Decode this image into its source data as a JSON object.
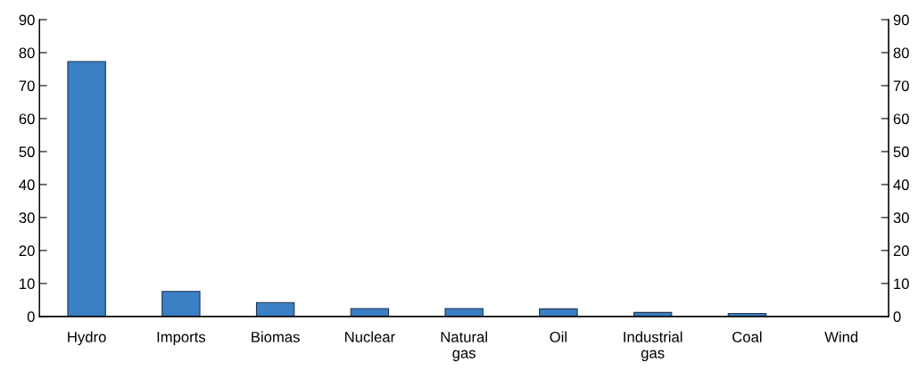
{
  "chart_data": {
    "type": "bar",
    "categories": [
      "Hydro",
      "Imports",
      "Biomas",
      "Nuclear",
      "Natural\ngas",
      "Oil",
      "Industrial\ngas",
      "Coal",
      "Wind"
    ],
    "values": [
      77.3,
      7.6,
      4.2,
      2.4,
      2.4,
      2.3,
      1.2,
      0.9,
      null
    ],
    "color": "#3b7fc4",
    "ylim": [
      0,
      90
    ],
    "yticks": [
      0,
      10,
      20,
      30,
      40,
      50,
      60,
      70,
      80,
      90
    ],
    "y2lim": [
      0,
      90
    ],
    "y2ticks": [
      0,
      10,
      20,
      30,
      40,
      50,
      60,
      70,
      80,
      90
    ],
    "grid": false,
    "legend": false
  }
}
